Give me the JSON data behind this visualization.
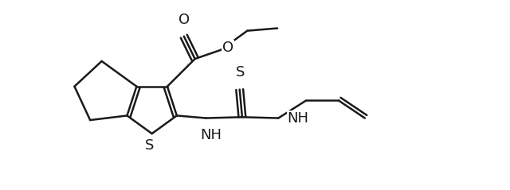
{
  "background_color": "#ffffff",
  "line_color": "#1a1a1a",
  "line_width": 1.8,
  "fig_width": 6.4,
  "fig_height": 2.39,
  "dpi": 100,
  "font_size_atom": 13,
  "xlim": [
    0.0,
    8.5
  ],
  "ylim": [
    -0.5,
    3.2
  ]
}
